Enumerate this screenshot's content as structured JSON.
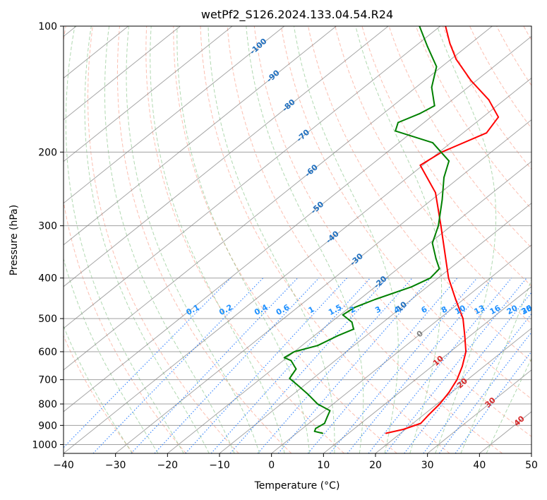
{
  "chart_data": {
    "type": "line",
    "title": "wetPf2_S126.2024.133.04.54.R24",
    "xlabel": "Temperature (°C)",
    "ylabel": "Pressure (hPa)",
    "xlim": [
      -40,
      50
    ],
    "ylim": [
      1050,
      100
    ],
    "y_scale": "log",
    "skew": "skew-T log-p",
    "grid": true,
    "x_ticks": [
      -40,
      -30,
      -20,
      -10,
      0,
      10,
      20,
      30,
      40,
      50
    ],
    "y_ticks": [
      100,
      200,
      300,
      400,
      500,
      600,
      700,
      800,
      900,
      1000
    ],
    "colors": {
      "temperature": "#ff0000",
      "dewpoint": "#008000",
      "dry_adiabat": "#fa8064",
      "moist_adiabat": "#64b464",
      "mixing_ratio": "#1f77ff",
      "isotherm": "#808080",
      "isobar": "#a0a0a0"
    },
    "series": [
      {
        "name": "",
        "color": "#ff0000",
        "points": [
          {
            "p": 940,
            "t": 17.2
          },
          {
            "p": 920,
            "t": 19.6
          },
          {
            "p": 890,
            "t": 21.5
          },
          {
            "p": 850,
            "t": 21.0
          },
          {
            "p": 800,
            "t": 20.5
          },
          {
            "p": 750,
            "t": 19.5
          },
          {
            "p": 700,
            "t": 18.0
          },
          {
            "p": 650,
            "t": 15.8
          },
          {
            "p": 600,
            "t": 13.0
          },
          {
            "p": 550,
            "t": 9.0
          },
          {
            "p": 500,
            "t": 4.5
          },
          {
            "p": 450,
            "t": -1.5
          },
          {
            "p": 400,
            "t": -8.0
          },
          {
            "p": 350,
            "t": -14.5
          },
          {
            "p": 300,
            "t": -22.0
          },
          {
            "p": 250,
            "t": -31.0
          },
          {
            "p": 215,
            "t": -40.5
          },
          {
            "p": 200,
            "t": -39.5
          },
          {
            "p": 180,
            "t": -35.5
          },
          {
            "p": 165,
            "t": -37.0
          },
          {
            "p": 150,
            "t": -43.0
          },
          {
            "p": 135,
            "t": -51.0
          },
          {
            "p": 120,
            "t": -59.0
          },
          {
            "p": 110,
            "t": -64.0
          },
          {
            "p": 100,
            "t": -69.0
          }
        ]
      },
      {
        "name": "",
        "color": "#008000",
        "points": [
          {
            "p": 940,
            "t": 5.0
          },
          {
            "p": 930,
            "t": 3.0
          },
          {
            "p": 915,
            "t": 2.5
          },
          {
            "p": 890,
            "t": 3.0
          },
          {
            "p": 860,
            "t": 2.0
          },
          {
            "p": 830,
            "t": 1.0
          },
          {
            "p": 800,
            "t": -3.0
          },
          {
            "p": 760,
            "t": -7.0
          },
          {
            "p": 720,
            "t": -11.5
          },
          {
            "p": 695,
            "t": -14.5
          },
          {
            "p": 660,
            "t": -15.5
          },
          {
            "p": 630,
            "t": -18.5
          },
          {
            "p": 620,
            "t": -20.5
          },
          {
            "p": 600,
            "t": -20.0
          },
          {
            "p": 580,
            "t": -17.0
          },
          {
            "p": 550,
            "t": -15.5
          },
          {
            "p": 530,
            "t": -14.0
          },
          {
            "p": 510,
            "t": -16.0
          },
          {
            "p": 490,
            "t": -19.5
          },
          {
            "p": 470,
            "t": -19.0
          },
          {
            "p": 450,
            "t": -17.0
          },
          {
            "p": 420,
            "t": -13.0
          },
          {
            "p": 400,
            "t": -11.5
          },
          {
            "p": 380,
            "t": -12.0
          },
          {
            "p": 360,
            "t": -15.0
          },
          {
            "p": 330,
            "t": -19.5
          },
          {
            "p": 300,
            "t": -22.5
          },
          {
            "p": 260,
            "t": -28.0
          },
          {
            "p": 230,
            "t": -33.0
          },
          {
            "p": 210,
            "t": -36.0
          },
          {
            "p": 190,
            "t": -43.5
          },
          {
            "p": 178,
            "t": -53.5
          },
          {
            "p": 170,
            "t": -55.0
          },
          {
            "p": 162,
            "t": -53.0
          },
          {
            "p": 155,
            "t": -52.0
          },
          {
            "p": 140,
            "t": -57.0
          },
          {
            "p": 125,
            "t": -61.0
          },
          {
            "p": 112,
            "t": -67.5
          },
          {
            "p": 100,
            "t": -74.0
          }
        ]
      }
    ],
    "isotherm_labels": [
      "-100",
      "-90",
      "-80",
      "-70",
      "-60",
      "-50",
      "-40",
      "-30",
      "-20",
      "-10",
      "0",
      "10",
      "20",
      "30",
      "40"
    ],
    "mixing_ratio_labels": [
      "0.1",
      "0.2",
      "0.4",
      "0.6",
      "1",
      "1.5",
      "2",
      "3",
      "4",
      "6",
      "8",
      "10",
      "13",
      "16",
      "20",
      "25",
      "30",
      "36"
    ]
  }
}
